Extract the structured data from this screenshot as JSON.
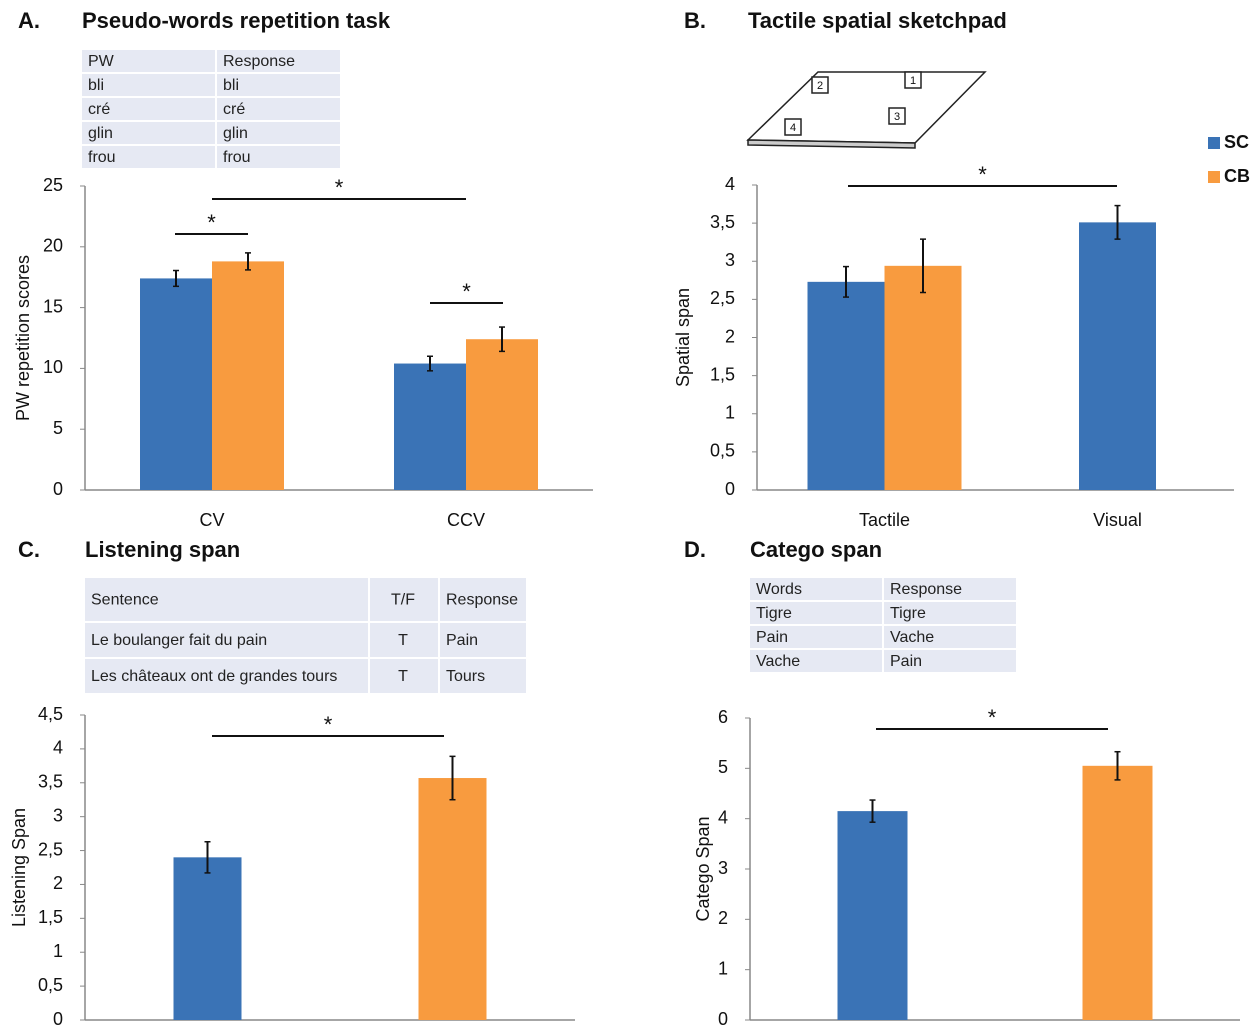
{
  "chart_data": [
    {
      "type": "bar",
      "panel": "A.",
      "title": "Pseudo-words repetition task",
      "table": {
        "rows": [
          [
            "PW",
            "Response"
          ],
          [
            "bli",
            "bli"
          ],
          [
            "cré",
            "cré"
          ],
          [
            "glin",
            "glin"
          ],
          [
            "frou",
            "frou"
          ]
        ]
      },
      "categories": [
        "CV",
        "CCV"
      ],
      "series": [
        {
          "color": "#3a73b6",
          "values": [
            17.4,
            10.4
          ],
          "errors": [
            0.65,
            0.6
          ]
        },
        {
          "color": "#f89b3f",
          "values": [
            18.8,
            12.4
          ],
          "errors": [
            0.7,
            1.0
          ]
        }
      ],
      "ylabel": "PW repetition scores",
      "ylim": [
        0,
        25
      ],
      "yticks": [
        0,
        5,
        10,
        15,
        20,
        25
      ],
      "annotations": [
        "*",
        "*",
        "*"
      ]
    },
    {
      "type": "bar",
      "panel": "B.",
      "title": "Tactile spatial sketchpad",
      "sketch_labels": [
        "1",
        "2",
        "3",
        "4"
      ],
      "categories": [
        "Tactile",
        "Visual"
      ],
      "series": [
        {
          "name": "SC",
          "color": "#3a73b6",
          "values": [
            2.73,
            3.51
          ],
          "errors": [
            0.2,
            0.22
          ]
        },
        {
          "name": "CB",
          "color": "#f89b3f",
          "values": [
            2.94,
            null
          ],
          "errors": [
            0.35,
            null
          ]
        }
      ],
      "ylabel": "Spatial span",
      "ylim": [
        0,
        4
      ],
      "yticks": [
        0,
        {
          "value": 0.5,
          "label": "0,5"
        },
        1,
        {
          "value": 1.5,
          "label": "1,5"
        },
        2,
        {
          "value": 2.5,
          "label": "2,5"
        },
        3,
        {
          "value": 3.5,
          "label": "3,5"
        },
        4
      ],
      "annotations": [
        "*"
      ],
      "legend": "right"
    },
    {
      "type": "bar",
      "panel": "C.",
      "title": "Listening span",
      "table": {
        "rows": [
          [
            "Sentence",
            "T/F",
            "Response"
          ],
          [
            "Le boulanger fait du pain",
            "T",
            "Pain"
          ],
          [
            "Les châteaux ont de grandes tours",
            "T",
            "Tours"
          ]
        ]
      },
      "categories": [
        null,
        null
      ],
      "series": [
        {
          "color": "#3a73b6",
          "values": [
            2.4,
            null
          ],
          "errors": [
            0.23,
            null
          ]
        },
        {
          "color": "#f89b3f",
          "values": [
            null,
            3.57
          ],
          "errors": [
            null,
            0.32
          ]
        }
      ],
      "ylabel": "Listening Span",
      "ylim": [
        0,
        4.5
      ],
      "yticks": [
        0,
        {
          "value": 0.5,
          "label": "0,5"
        },
        1,
        {
          "value": 1.5,
          "label": "1,5"
        },
        2,
        {
          "value": 2.5,
          "label": "2,5"
        },
        3,
        {
          "value": 3.5,
          "label": "3,5"
        },
        4,
        {
          "value": 4.5,
          "label": "4,5"
        }
      ],
      "annotations": [
        "*"
      ]
    },
    {
      "type": "bar",
      "panel": "D.",
      "title": "Catego span",
      "table": {
        "rows": [
          [
            "Words",
            "Response"
          ],
          [
            "Tigre",
            "Tigre"
          ],
          [
            "Pain",
            "Vache"
          ],
          [
            "Vache",
            "Pain"
          ]
        ]
      },
      "categories": [
        null,
        null
      ],
      "series": [
        {
          "color": "#3a73b6",
          "values": [
            4.15,
            null
          ],
          "errors": [
            0.22,
            null
          ]
        },
        {
          "color": "#f89b3f",
          "values": [
            null,
            5.05
          ],
          "errors": [
            null,
            0.28
          ]
        }
      ],
      "ylabel": "Catego Span",
      "ylim": [
        0,
        6
      ],
      "yticks": [
        0,
        1,
        2,
        3,
        4,
        5,
        6
      ],
      "annotations": [
        "*"
      ]
    }
  ]
}
